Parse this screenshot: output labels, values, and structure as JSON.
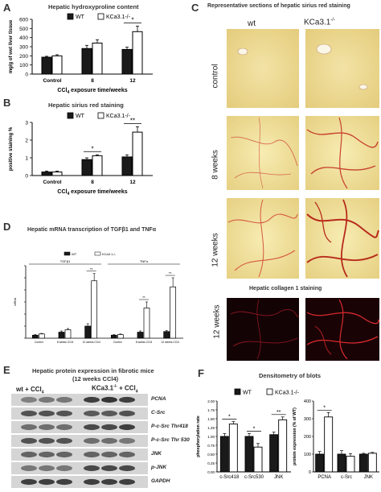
{
  "panels": {
    "A": {
      "letter": "A",
      "chart_data": {
        "type": "bar",
        "title": "Hepatic hydroxyproline content",
        "xlabel": "CCl4 exposure time/weeks",
        "ylabel": "mg/g of wet liver tissue",
        "ylim": [
          0,
          600
        ],
        "yticks": [
          "0",
          "100",
          "200",
          "300",
          "400",
          "500",
          "600"
        ],
        "categories": [
          "Control",
          "8",
          "12"
        ],
        "series": [
          {
            "name": "WT",
            "values": [
              185,
              280,
              270
            ],
            "errors": [
              10,
              35,
              25
            ]
          },
          {
            "name": "KCa3.1-/-",
            "values": [
              200,
              340,
              465
            ],
            "errors": [
              12,
              35,
              60
            ]
          }
        ],
        "annotations": [
          {
            "category": "12",
            "text": "*"
          }
        ]
      }
    },
    "B": {
      "letter": "B",
      "chart_data": {
        "type": "bar",
        "title": "Hepatic sirius red staining",
        "xlabel": "CCl4 exposure time/weeks",
        "ylabel": "positive staining %",
        "ylim": [
          0,
          3
        ],
        "yticks": [
          "0",
          "1",
          "2",
          "3"
        ],
        "categories": [
          "Control",
          "8",
          "12"
        ],
        "series": [
          {
            "name": "WT",
            "values": [
              0.2,
              0.9,
              1.05
            ],
            "errors": [
              0.05,
              0.1,
              0.12
            ]
          },
          {
            "name": "KCa3.1-/-",
            "values": [
              0.2,
              1.12,
              2.45
            ],
            "errors": [
              0.05,
              0.05,
              0.3
            ]
          }
        ],
        "annotations": [
          {
            "category": "8",
            "text": "*"
          },
          {
            "category": "12",
            "text": "**"
          }
        ]
      }
    },
    "C": {
      "letter": "C",
      "title": "Representative sections of hepatic sirius red staining",
      "col_wt": "wt",
      "col_ko": "KCa3.1",
      "ko_sup": "-/-",
      "rows": [
        "control",
        "8 weeks",
        "12 weeks"
      ],
      "collagen_title": "Hepatic collagen 1 staining",
      "collagen_row": "12 weeks"
    },
    "D": {
      "letter": "D",
      "title": "Hepatic mRNA transcription of TGFβ1 and TNFα",
      "chart_data": {
        "type": "bar",
        "ylabel": "mRNA",
        "groups": [
          "TGFβ1",
          "TNFα"
        ],
        "categories": [
          "Control",
          "8 weeks CCl4",
          "12 weeks CCl4",
          "Control",
          "8 weeks CCl4",
          "12 weeks CCl4"
        ],
        "series": [
          {
            "name": "WT",
            "values": [
              0.5,
              1.0,
              2.0,
              0.5,
              1.0,
              1.1
            ],
            "errors": [
              0.1,
              0.2,
              0.4,
              0.1,
              0.2,
              0.2
            ]
          },
          {
            "name": "KCa3.1-/-",
            "values": [
              0.7,
              1.4,
              9.5,
              0.6,
              5.0,
              8.5
            ],
            "errors": [
              0.1,
              0.2,
              1.2,
              0.1,
              1.0,
              1.5
            ]
          }
        ],
        "annotations": [
          "**",
          "**",
          "**"
        ]
      }
    },
    "E": {
      "letter": "E",
      "title": "Hepatic protein expression in fibrotic mice",
      "subtitle": "(12 weeks CCl4)",
      "wt_label": "wt + CCl",
      "ko_label": "KCa3.1",
      "ko_sup": "-/-",
      "ko_suffix": " + CCl",
      "sub4": "4",
      "bands": [
        "PCNA",
        "C-Src",
        "P-c-Src Thr418",
        "P-c-Src Thr 530",
        "JNK",
        "p-JNK",
        "GAPDH"
      ]
    },
    "F": {
      "letter": "F",
      "title": "Densitometry of blots",
      "legend": [
        "WT",
        "KCa3.1-/-"
      ],
      "chart_data": [
        {
          "type": "bar",
          "ylabel": "phosphorylation rate",
          "ylim": [
            0,
            2.0
          ],
          "yticks": [
            "0.00",
            "0.25",
            "0.50",
            "0.75",
            "1.00",
            "1.25",
            "1.50",
            "1.75",
            "2.00"
          ],
          "categories": [
            "c-Src418",
            "c-Src530",
            "JNK"
          ],
          "series": [
            {
              "name": "WT",
              "values": [
                1.0,
                1.0,
                1.05
              ],
              "errors": [
                0.08,
                0.08,
                0.07
              ]
            },
            {
              "name": "KCa3.1-/-",
              "values": [
                1.35,
                0.7,
                1.47
              ],
              "errors": [
                0.07,
                0.1,
                0.08
              ]
            }
          ],
          "annotations": [
            "*",
            "*",
            "**"
          ]
        },
        {
          "type": "bar",
          "ylabel": "protein expression (% of WT)",
          "ylim": [
            0,
            400
          ],
          "yticks": [
            "0",
            "100",
            "200",
            "300",
            "400"
          ],
          "categories": [
            "PCNA",
            "c-Src",
            "JNK"
          ],
          "series": [
            {
              "name": "WT",
              "values": [
                100,
                100,
                100
              ],
              "errors": [
                15,
                20,
                5
              ]
            },
            {
              "name": "KCa3.1-/-",
              "values": [
                310,
                88,
                105
              ],
              "errors": [
                25,
                15,
                5
              ]
            }
          ],
          "annotations": [
            "*"
          ]
        }
      ]
    }
  }
}
